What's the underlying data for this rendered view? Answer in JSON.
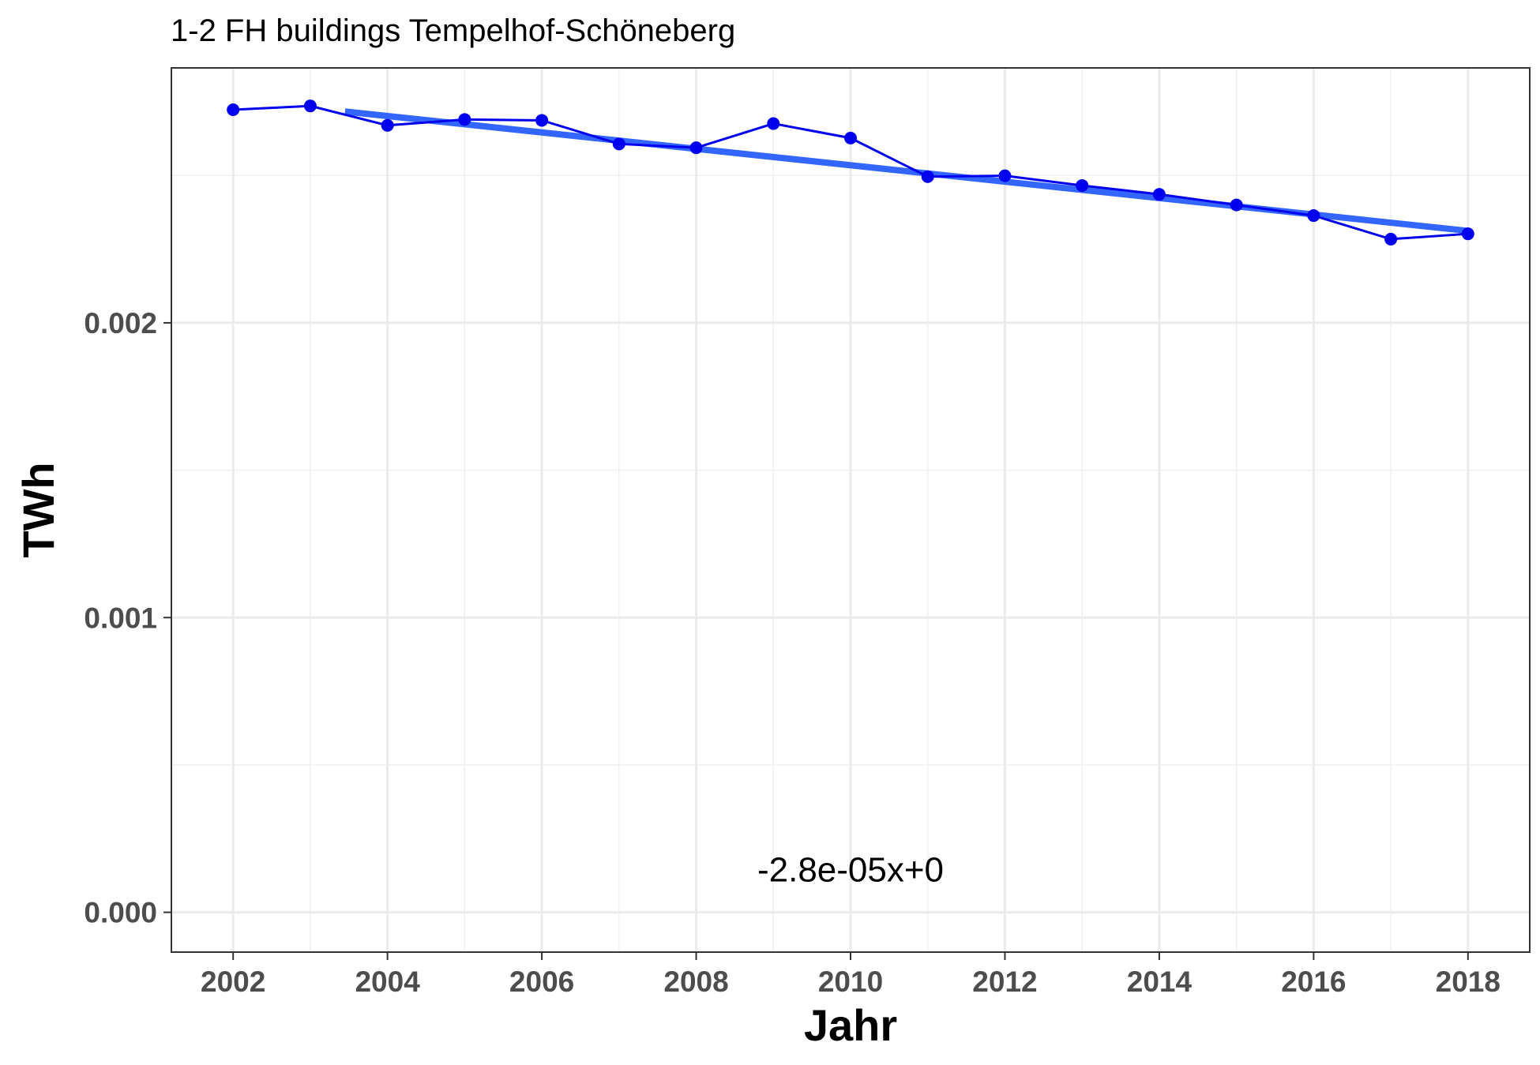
{
  "chart_data": {
    "type": "line",
    "title": "1-2 FH buildings Tempelhof-Schöneberg",
    "xlabel": "Jahr",
    "ylabel": "TWh",
    "xlim": [
      2001.2,
      2018.8
    ],
    "ylim": [
      -0.000135,
      0.002865
    ],
    "x_ticks": [
      2002,
      2004,
      2006,
      2008,
      2010,
      2012,
      2014,
      2016,
      2018
    ],
    "x_tick_labels": [
      "2002",
      "2004",
      "2006",
      "2008",
      "2010",
      "2012",
      "2014",
      "2016",
      "2018"
    ],
    "y_ticks": [
      0.0,
      0.001,
      0.002
    ],
    "y_tick_labels": [
      "0.000",
      "0.001",
      "0.002"
    ],
    "grid": true,
    "series": [
      {
        "name": "",
        "color": "#0000ee",
        "x": [
          2002,
          2003,
          2004,
          2005,
          2006,
          2007,
          2008,
          2009,
          2010,
          2011,
          2012,
          2013,
          2014,
          2015,
          2016,
          2017,
          2018
        ],
        "y": [
          0.002723,
          0.002736,
          0.00267,
          0.00269,
          0.002687,
          0.002607,
          0.002594,
          0.002676,
          0.002627,
          0.002496,
          0.002499,
          0.002466,
          0.002436,
          0.0024,
          0.002364,
          0.002284,
          0.002302
        ]
      }
    ],
    "trend_line": {
      "color": "#3366ff",
      "x": [
        2003.45,
        2018
      ],
      "y": [
        0.002717,
        0.002312
      ]
    },
    "annotation": {
      "text": "-2.8e-05x+0",
      "x": 2010,
      "y": 0.000145
    }
  }
}
